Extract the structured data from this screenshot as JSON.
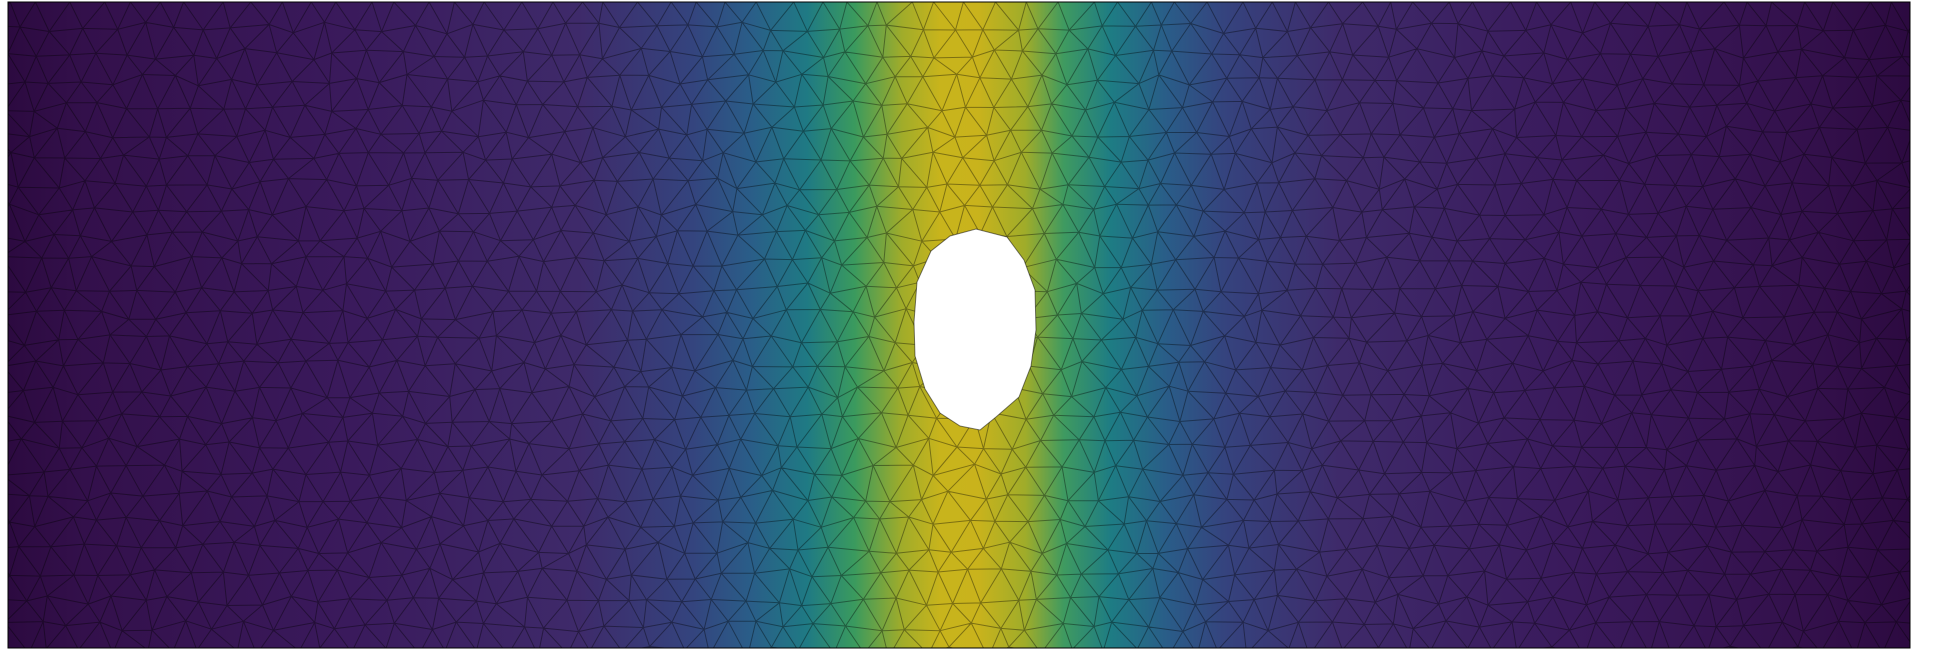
{
  "scene": {
    "description_kind": "finite-element-field",
    "colormap": "viridis",
    "colormap_stops": [
      "#440154",
      "#46327e",
      "#365c8d",
      "#277f8e",
      "#1fa187",
      "#4ac16d",
      "#a0da39",
      "#c8b41c"
    ],
    "colors": {
      "background": "#ffffff",
      "domain_outline": "#000000",
      "mesh_edges": "#000000",
      "hole_fill": "#ffffff",
      "low": "#300a45",
      "mid": "#1e7f7a",
      "high": "#c9b21e"
    },
    "mesh": {
      "element_type": "triangle",
      "edges_visible": true
    },
    "hole": {
      "shape": "ellipse",
      "fill": "white"
    }
  }
}
